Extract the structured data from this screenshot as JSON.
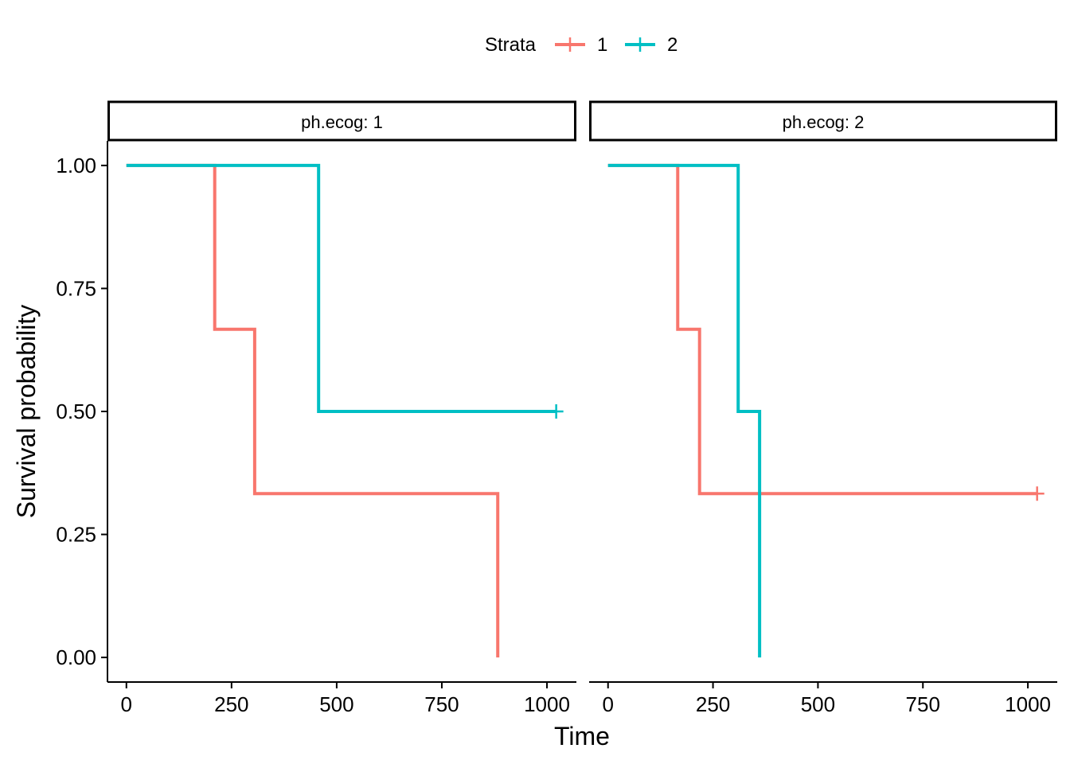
{
  "chart_data": {
    "type": "line",
    "subtype": "kaplan-meier step",
    "xlabel": "Time",
    "ylabel": "Survival probability",
    "legend": {
      "title": "Strata",
      "placement": "top",
      "entries": [
        {
          "label": "1",
          "color": "#F8766D"
        },
        {
          "label": "2",
          "color": "#00BFC4"
        }
      ]
    },
    "xlim": [
      -45,
      1070
    ],
    "ylim": [
      -0.05,
      1.05
    ],
    "x_ticks": [
      0,
      250,
      500,
      750,
      1000
    ],
    "x_tick_labels": [
      "0",
      "250",
      "500",
      "750",
      "1000"
    ],
    "y_ticks": [
      0,
      0.25,
      0.5,
      0.75,
      1.0
    ],
    "y_tick_labels": [
      "0.00",
      "0.25",
      "0.50",
      "0.75",
      "1.00"
    ],
    "grid": false,
    "facets": [
      {
        "strip": "ph.ecog: 1",
        "series": [
          {
            "name": "1",
            "color": "#F8766D",
            "x": [
              0,
              210,
              305,
              883
            ],
            "y": [
              1.0,
              0.667,
              0.333,
              0.0
            ],
            "censored": []
          },
          {
            "name": "2",
            "color": "#00BFC4",
            "x": [
              0,
              457,
              1022
            ],
            "y": [
              1.0,
              0.5,
              0.5
            ],
            "censored": [
              {
                "x": 1022,
                "y": 0.5
              }
            ]
          }
        ]
      },
      {
        "strip": "ph.ecog: 2",
        "series": [
          {
            "name": "1",
            "color": "#F8766D",
            "x": [
              0,
              166,
              218,
              1022
            ],
            "y": [
              1.0,
              0.667,
              0.333,
              0.333
            ],
            "censored": [
              {
                "x": 1022,
                "y": 0.333
              }
            ]
          },
          {
            "name": "2",
            "color": "#00BFC4",
            "x": [
              0,
              310,
              361,
              361
            ],
            "y": [
              1.0,
              0.5,
              0.0,
              0.0
            ],
            "censored": []
          }
        ]
      }
    ]
  }
}
